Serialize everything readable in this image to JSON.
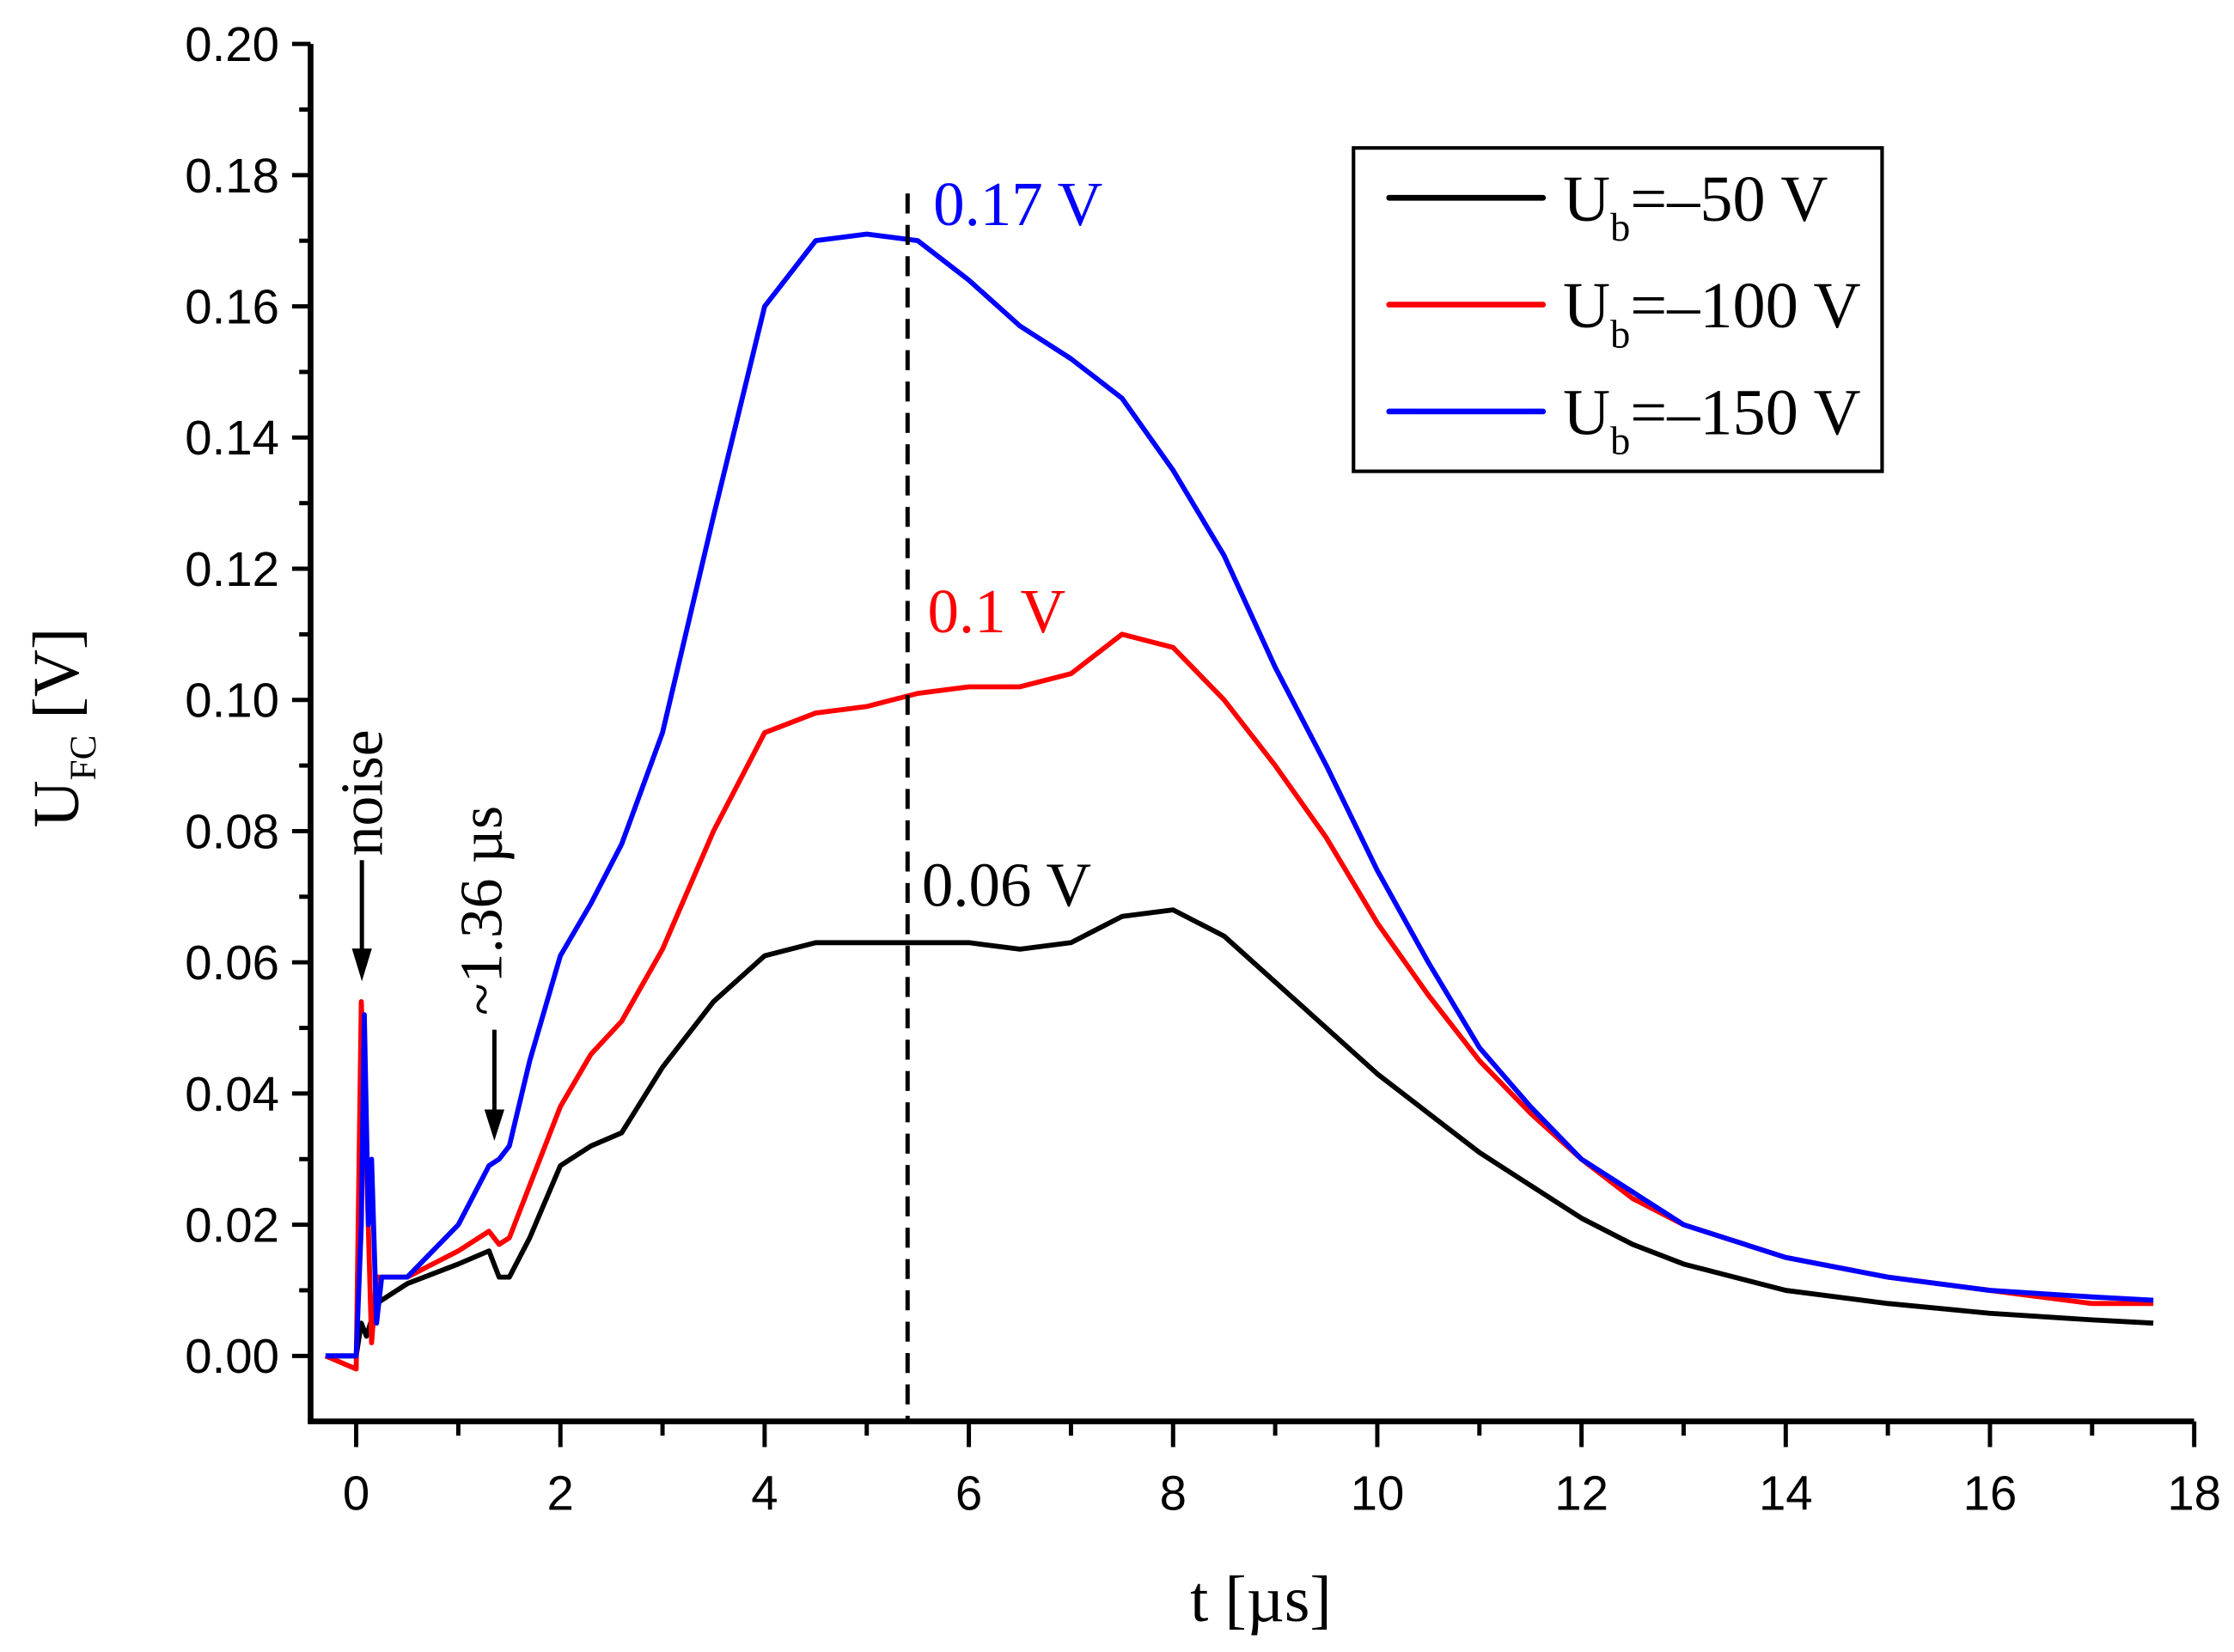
{
  "chart_data": {
    "type": "line",
    "xlabel": "t [µs]",
    "ylabel_main": "U",
    "ylabel_sub": "FC",
    "ylabel_unit": " [V]",
    "xlim": [
      -0.3,
      18
    ],
    "ylim": [
      -0.01,
      0.2
    ],
    "grid": false,
    "legend_placement": "top-right",
    "x_ticks": [
      "0",
      "2",
      "4",
      "6",
      "8",
      "10",
      "12",
      "14",
      "16",
      "18"
    ],
    "y_ticks": [
      "0.00",
      "0.02",
      "0.04",
      "0.06",
      "0.08",
      "0.10",
      "0.12",
      "0.14",
      "0.16",
      "0.18",
      "0.20"
    ],
    "series": [
      {
        "name": "Ub=–50 V",
        "legend_main": "U",
        "legend_sub": "b",
        "legend_rest": "=–50 V",
        "color": "#000000",
        "x": [
          -0.3,
          0,
          0.05,
          0.1,
          0.2,
          0.5,
          1.0,
          1.3,
          1.4,
          1.5,
          1.7,
          2.0,
          2.3,
          2.6,
          3.0,
          3.5,
          4.0,
          4.5,
          5,
          5.5,
          6,
          6.5,
          7,
          7.5,
          8,
          8.5,
          9,
          9.5,
          10,
          10.5,
          11,
          11.5,
          12,
          12.5,
          13,
          14,
          15,
          16,
          17,
          17.6
        ],
        "y": [
          0,
          0,
          0.005,
          0.003,
          0.008,
          0.011,
          0.014,
          0.016,
          0.012,
          0.012,
          0.018,
          0.029,
          0.032,
          0.034,
          0.044,
          0.054,
          0.061,
          0.063,
          0.063,
          0.063,
          0.063,
          0.062,
          0.063,
          0.067,
          0.068,
          0.064,
          0.057,
          0.05,
          0.043,
          0.037,
          0.031,
          0.026,
          0.021,
          0.017,
          0.014,
          0.01,
          0.008,
          0.0065,
          0.0055,
          0.005
        ]
      },
      {
        "name": "Ub=–100 V",
        "legend_main": "U",
        "legend_sub": "b",
        "legend_rest": "=–100 V",
        "color": "#ff0000",
        "x": [
          -0.3,
          0,
          0.05,
          0.1,
          0.15,
          0.2,
          0.5,
          1.0,
          1.3,
          1.4,
          1.5,
          1.7,
          2.0,
          2.3,
          2.6,
          3.0,
          3.5,
          4.0,
          4.5,
          5,
          5.5,
          6,
          6.5,
          7,
          7.5,
          8,
          8.5,
          9,
          9.5,
          10,
          10.5,
          11,
          11.5,
          12,
          12.5,
          13,
          14,
          15,
          16,
          17,
          17.6
        ],
        "y": [
          0,
          -0.002,
          0.054,
          0.03,
          0.002,
          0.012,
          0.012,
          0.016,
          0.019,
          0.017,
          0.018,
          0.026,
          0.038,
          0.046,
          0.051,
          0.062,
          0.08,
          0.095,
          0.098,
          0.099,
          0.101,
          0.102,
          0.102,
          0.104,
          0.11,
          0.108,
          0.1,
          0.09,
          0.079,
          0.066,
          0.055,
          0.045,
          0.037,
          0.03,
          0.024,
          0.02,
          0.015,
          0.012,
          0.01,
          0.008,
          0.008
        ]
      },
      {
        "name": "Ub=–150 V",
        "legend_main": "U",
        "legend_sub": "b",
        "legend_rest": "=–150 V",
        "color": "#0000ff",
        "x": [
          -0.3,
          0,
          0.05,
          0.08,
          0.12,
          0.15,
          0.2,
          0.25,
          0.5,
          1.0,
          1.3,
          1.4,
          1.5,
          1.7,
          2.0,
          2.3,
          2.6,
          3.0,
          3.5,
          4.0,
          4.5,
          5,
          5.5,
          6,
          6.5,
          7,
          7.5,
          8,
          8.5,
          9,
          9.5,
          10,
          10.5,
          11,
          11.5,
          12,
          12.5,
          13,
          14,
          15,
          16,
          17,
          17.6
        ],
        "y": [
          0,
          0,
          0.02,
          0.052,
          0.02,
          0.03,
          0.005,
          0.012,
          0.012,
          0.02,
          0.029,
          0.03,
          0.032,
          0.045,
          0.061,
          0.069,
          0.078,
          0.095,
          0.128,
          0.16,
          0.17,
          0.171,
          0.17,
          0.164,
          0.157,
          0.152,
          0.146,
          0.135,
          0.122,
          0.105,
          0.09,
          0.074,
          0.06,
          0.047,
          0.038,
          0.03,
          0.025,
          0.02,
          0.015,
          0.012,
          0.01,
          0.009,
          0.0085
        ]
      }
    ],
    "reference_line_t": 5.4,
    "annotations": {
      "peak_150": "0.17 V",
      "peak_100": "0.1 V",
      "peak_50": "0.06 V",
      "noise": "noise",
      "time_mark": "~1.36 µs"
    }
  }
}
